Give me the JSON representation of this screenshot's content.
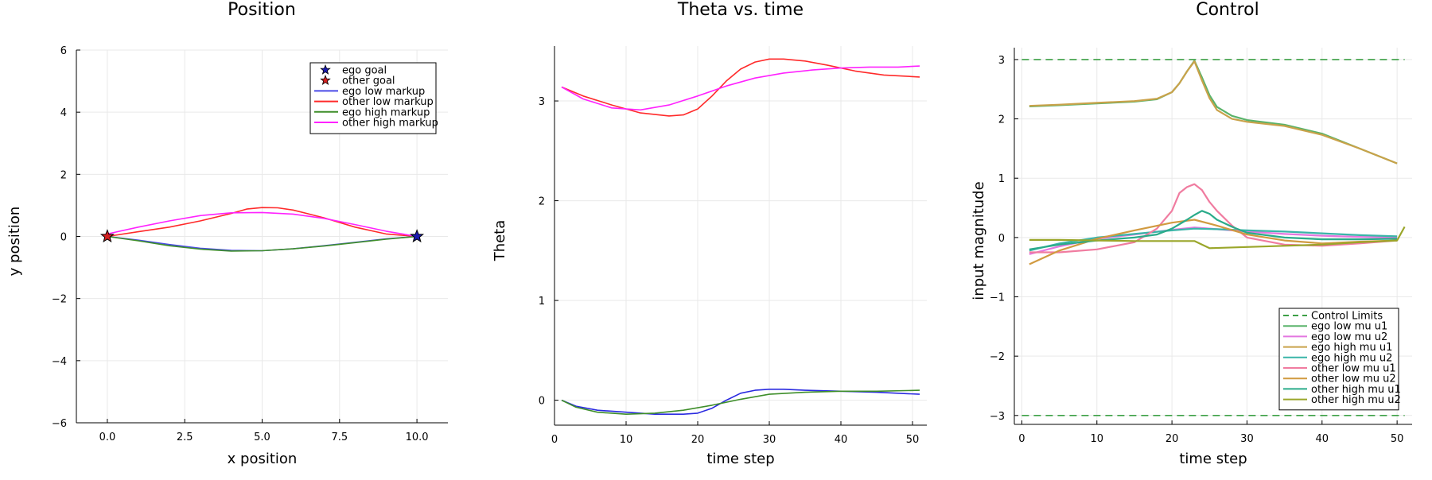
{
  "chart_data": [
    {
      "type": "line",
      "title": "Position",
      "xlabel": "x position",
      "ylabel": "y position",
      "xlim": [
        -1,
        11
      ],
      "ylim": [
        -6,
        6
      ],
      "xticks": [
        0,
        2.5,
        5,
        7.5,
        10
      ],
      "xtick_labels": [
        "0.0",
        "2.5",
        "5.0",
        "7.5",
        "10.0"
      ],
      "yticks": [
        -6,
        -4,
        -2,
        0,
        2,
        4,
        6
      ],
      "ytick_labels": [
        "−6",
        "−4",
        "−2",
        "0",
        "2",
        "4",
        "6"
      ],
      "grid": true,
      "legend_position": "top-right",
      "markers": [
        {
          "name": "ego goal",
          "color": "#1a1ab0",
          "points": [
            [
              10,
              0
            ]
          ]
        },
        {
          "name": "other goal",
          "color": "#d42020",
          "points": [
            [
              0,
              0
            ]
          ]
        }
      ],
      "series": [
        {
          "name": "ego low markup",
          "color": "#4a4ae6",
          "x": [
            0,
            1,
            2,
            3,
            4,
            5,
            6,
            7,
            8,
            9,
            10
          ],
          "y": [
            0,
            -0.12,
            -0.26,
            -0.38,
            -0.45,
            -0.46,
            -0.4,
            -0.3,
            -0.19,
            -0.08,
            0
          ]
        },
        {
          "name": "other low markup",
          "color": "#ff2a2a",
          "x": [
            10,
            9,
            8,
            7,
            6,
            5.5,
            5,
            4.5,
            4,
            3,
            2,
            1,
            0
          ],
          "y": [
            0,
            0.08,
            0.3,
            0.6,
            0.85,
            0.92,
            0.93,
            0.88,
            0.74,
            0.5,
            0.3,
            0.15,
            0
          ]
        },
        {
          "name": "ego high markup",
          "color": "#3e8e2a",
          "x": [
            0,
            1,
            2,
            3,
            4,
            5,
            6,
            7,
            8,
            9,
            10
          ],
          "y": [
            0,
            -0.14,
            -0.3,
            -0.41,
            -0.47,
            -0.46,
            -0.4,
            -0.31,
            -0.2,
            -0.09,
            0
          ]
        },
        {
          "name": "other high markup",
          "color": "#ff22ff",
          "x": [
            10,
            9,
            8,
            7,
            6,
            5,
            4,
            3,
            2,
            1,
            0
          ],
          "y": [
            0,
            0.17,
            0.38,
            0.58,
            0.72,
            0.77,
            0.76,
            0.67,
            0.5,
            0.3,
            0.08
          ]
        }
      ]
    },
    {
      "type": "line",
      "title": "Theta vs. time",
      "xlabel": "time step",
      "ylabel": "Theta",
      "xlim": [
        0,
        52
      ],
      "ylim": [
        -0.25,
        3.55
      ],
      "xticks": [
        0,
        10,
        20,
        30,
        40,
        50
      ],
      "xtick_labels": [
        "0",
        "10",
        "20",
        "30",
        "40",
        "50"
      ],
      "yticks": [
        0,
        1,
        2,
        3
      ],
      "ytick_labels": [
        "0",
        "1",
        "2",
        "3"
      ],
      "grid": true,
      "series": [
        {
          "color": "#ff2a2a",
          "x": [
            1,
            4,
            8,
            12,
            16,
            18,
            20,
            22,
            24,
            26,
            28,
            30,
            32,
            35,
            38,
            42,
            46,
            51
          ],
          "y": [
            3.14,
            3.05,
            2.96,
            2.88,
            2.85,
            2.86,
            2.92,
            3.05,
            3.2,
            3.32,
            3.39,
            3.42,
            3.42,
            3.4,
            3.36,
            3.3,
            3.26,
            3.24
          ]
        },
        {
          "color": "#ff22ff",
          "x": [
            1,
            4,
            8,
            12,
            16,
            20,
            24,
            28,
            32,
            36,
            40,
            44,
            48,
            51
          ],
          "y": [
            3.14,
            3.02,
            2.93,
            2.91,
            2.96,
            3.05,
            3.15,
            3.23,
            3.28,
            3.31,
            3.33,
            3.34,
            3.34,
            3.35
          ]
        },
        {
          "color": "#2a2ae0",
          "x": [
            1,
            3,
            6,
            10,
            14,
            18,
            20,
            22,
            24,
            26,
            28,
            30,
            32,
            35,
            40,
            45,
            51
          ],
          "y": [
            0,
            -0.06,
            -0.1,
            -0.12,
            -0.14,
            -0.14,
            -0.13,
            -0.08,
            0.0,
            0.07,
            0.1,
            0.11,
            0.11,
            0.1,
            0.09,
            0.08,
            0.06
          ]
        },
        {
          "color": "#3e8e2a",
          "x": [
            1,
            3,
            6,
            10,
            14,
            18,
            22,
            26,
            30,
            35,
            40,
            45,
            51
          ],
          "y": [
            0,
            -0.07,
            -0.12,
            -0.14,
            -0.13,
            -0.1,
            -0.05,
            0.01,
            0.06,
            0.08,
            0.09,
            0.09,
            0.1
          ]
        }
      ]
    },
    {
      "type": "line",
      "title": "Control",
      "xlabel": "time step",
      "ylabel": "input magnitude",
      "xlim": [
        -1,
        52
      ],
      "ylim": [
        -3.15,
        3.2
      ],
      "xticks": [
        0,
        10,
        20,
        30,
        40,
        50
      ],
      "xtick_labels": [
        "0",
        "10",
        "20",
        "30",
        "40",
        "50"
      ],
      "yticks": [
        -3,
        -2,
        -1,
        0,
        1,
        2,
        3
      ],
      "ytick_labels": [
        "−3",
        "−2",
        "−1",
        "0",
        "1",
        "2",
        "3"
      ],
      "grid": true,
      "legend_position": "bottom-right",
      "series": [
        {
          "name": "Control Limits",
          "color": "#3da046",
          "dashed": true,
          "x": [
            0,
            51
          ],
          "y": [
            3,
            3
          ]
        },
        {
          "name": "Control Limits",
          "color": "#3da046",
          "dashed": true,
          "x": [
            0,
            51
          ],
          "y": [
            -3,
            -3
          ]
        },
        {
          "name": "ego low mu u1",
          "color": "#5ab36a",
          "x": [
            1,
            5,
            10,
            15,
            18,
            20,
            21,
            22,
            23,
            24,
            25,
            26,
            28,
            30,
            35,
            40,
            45,
            50
          ],
          "y": [
            2.21,
            2.23,
            2.26,
            2.29,
            2.33,
            2.45,
            2.6,
            2.8,
            2.98,
            2.7,
            2.4,
            2.2,
            2.05,
            1.98,
            1.9,
            1.75,
            1.5,
            1.25
          ]
        },
        {
          "name": "ego low mu u2",
          "color": "#e377e0",
          "x": [
            1,
            5,
            10,
            15,
            20,
            23,
            26,
            30,
            35,
            40,
            45,
            50
          ],
          "y": [
            -0.28,
            -0.15,
            -0.02,
            0.05,
            0.13,
            0.17,
            0.14,
            0.1,
            0.06,
            0.03,
            0.01,
            0.0
          ]
        },
        {
          "name": "ego high mu u1",
          "color": "#c9a24a",
          "x": [
            1,
            5,
            10,
            15,
            18,
            20,
            21,
            22,
            23,
            24,
            25,
            26,
            28,
            30,
            35,
            40,
            45,
            50
          ],
          "y": [
            2.22,
            2.24,
            2.27,
            2.3,
            2.34,
            2.45,
            2.6,
            2.8,
            2.97,
            2.65,
            2.35,
            2.15,
            2.0,
            1.95,
            1.88,
            1.73,
            1.5,
            1.25
          ]
        },
        {
          "name": "ego high mu u2",
          "color": "#3ab5a8",
          "x": [
            1,
            5,
            10,
            15,
            20,
            23,
            26,
            30,
            35,
            40,
            45,
            50
          ],
          "y": [
            -0.22,
            -0.1,
            0.0,
            0.06,
            0.12,
            0.15,
            0.14,
            0.12,
            0.1,
            0.07,
            0.04,
            0.02
          ]
        },
        {
          "name": "other low mu u1",
          "color": "#f07ca0",
          "x": [
            1,
            5,
            10,
            15,
            18,
            20,
            21,
            22,
            23,
            24,
            25,
            26,
            28,
            30,
            35,
            40,
            45,
            50
          ],
          "y": [
            -0.25,
            -0.25,
            -0.2,
            -0.08,
            0.15,
            0.45,
            0.75,
            0.85,
            0.9,
            0.8,
            0.6,
            0.45,
            0.2,
            0.0,
            -0.12,
            -0.14,
            -0.1,
            -0.05
          ]
        },
        {
          "name": "other low mu u2",
          "color": "#d19a40",
          "x": [
            1,
            5,
            10,
            15,
            20,
            23,
            26,
            30,
            35,
            40,
            45,
            50
          ],
          "y": [
            -0.45,
            -0.22,
            -0.02,
            0.12,
            0.25,
            0.3,
            0.2,
            0.05,
            -0.05,
            -0.1,
            -0.07,
            -0.05
          ]
        },
        {
          "name": "other high mu u1",
          "color": "#2aab8a",
          "x": [
            1,
            5,
            10,
            15,
            18,
            20,
            22,
            23,
            24,
            25,
            26,
            28,
            30,
            35,
            40,
            45,
            50
          ],
          "y": [
            -0.2,
            -0.12,
            -0.05,
            0.0,
            0.05,
            0.15,
            0.3,
            0.38,
            0.45,
            0.4,
            0.3,
            0.18,
            0.08,
            0.0,
            -0.03,
            -0.03,
            -0.02
          ]
        },
        {
          "name": "other high mu u2",
          "color": "#9aa62a",
          "x": [
            1,
            5,
            10,
            15,
            20,
            23,
            24,
            25,
            30,
            35,
            40,
            45,
            50,
            51
          ],
          "y": [
            -0.04,
            -0.04,
            -0.05,
            -0.06,
            -0.06,
            -0.06,
            -0.12,
            -0.18,
            -0.16,
            -0.14,
            -0.12,
            -0.08,
            -0.05,
            0.18
          ]
        }
      ]
    }
  ]
}
